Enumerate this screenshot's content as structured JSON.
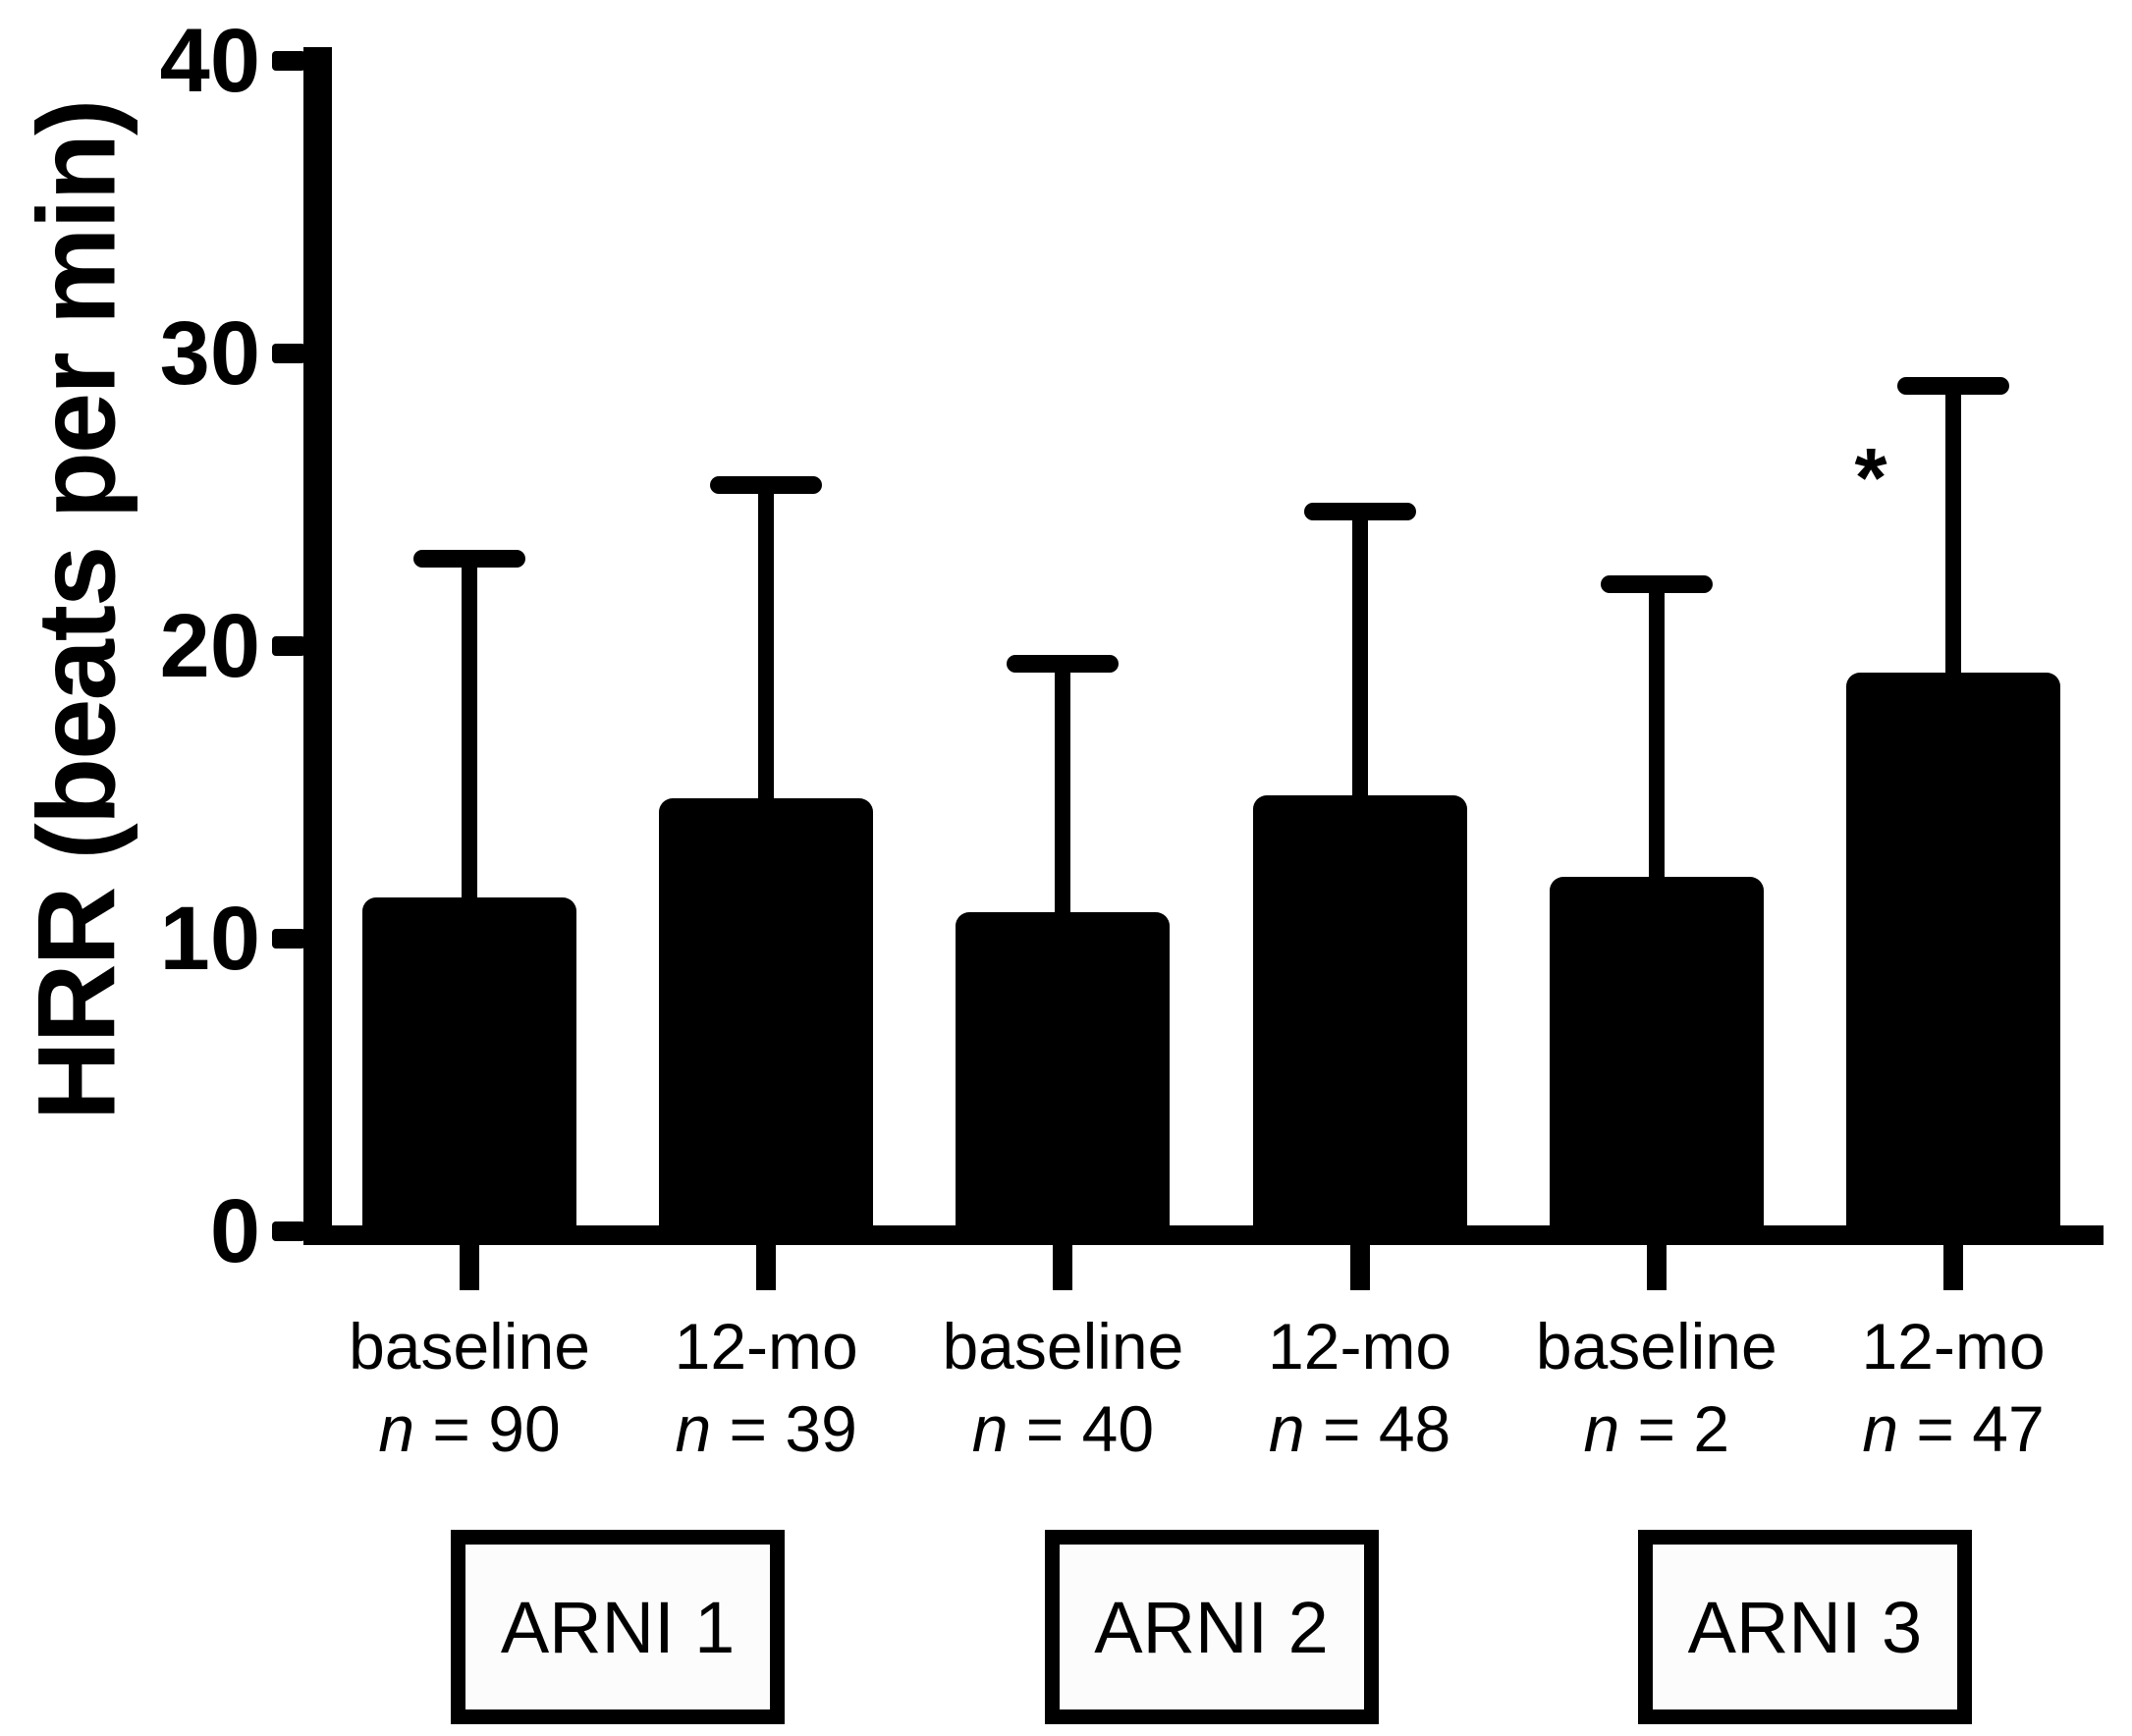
{
  "colors": {
    "bar": "#000000",
    "axis": "#000000",
    "background": "#ffffff",
    "box_fill": "#fcfcfc"
  },
  "chart_data": {
    "type": "bar",
    "title": "",
    "xlabel": "",
    "ylabel": "HRR (beats per min)",
    "ylim": [
      0,
      40
    ],
    "yticks": [
      "0",
      "10",
      "20",
      "30",
      "40"
    ],
    "grid": false,
    "legend": "none",
    "error_bars": "upper only (SD)",
    "groups": [
      {
        "label": "ARNI 1",
        "bars": [
          {
            "timepoint": "baseline",
            "n_label": "n = 90",
            "mean": 11.4,
            "upper": 23.0,
            "error": 11.6,
            "significance": ""
          },
          {
            "timepoint": "12-mo",
            "n_label": "n = 39",
            "mean": 14.8,
            "upper": 25.5,
            "error": 10.7,
            "significance": ""
          }
        ]
      },
      {
        "label": "ARNI 2",
        "bars": [
          {
            "timepoint": "baseline",
            "n_label": "n = 40",
            "mean": 10.9,
            "upper": 19.4,
            "error": 8.5,
            "significance": ""
          },
          {
            "timepoint": "12-mo",
            "n_label": "n = 48",
            "mean": 14.9,
            "upper": 24.6,
            "error": 9.7,
            "significance": ""
          }
        ]
      },
      {
        "label": "ARNI 3",
        "bars": [
          {
            "timepoint": "baseline",
            "n_label": "n = 2",
            "mean": 12.1,
            "upper": 22.1,
            "error": 10.0,
            "significance": ""
          },
          {
            "timepoint": "12-mo",
            "n_label": "n = 47",
            "mean": 19.1,
            "upper": 28.9,
            "error": 9.8,
            "significance": "*"
          }
        ]
      }
    ]
  }
}
